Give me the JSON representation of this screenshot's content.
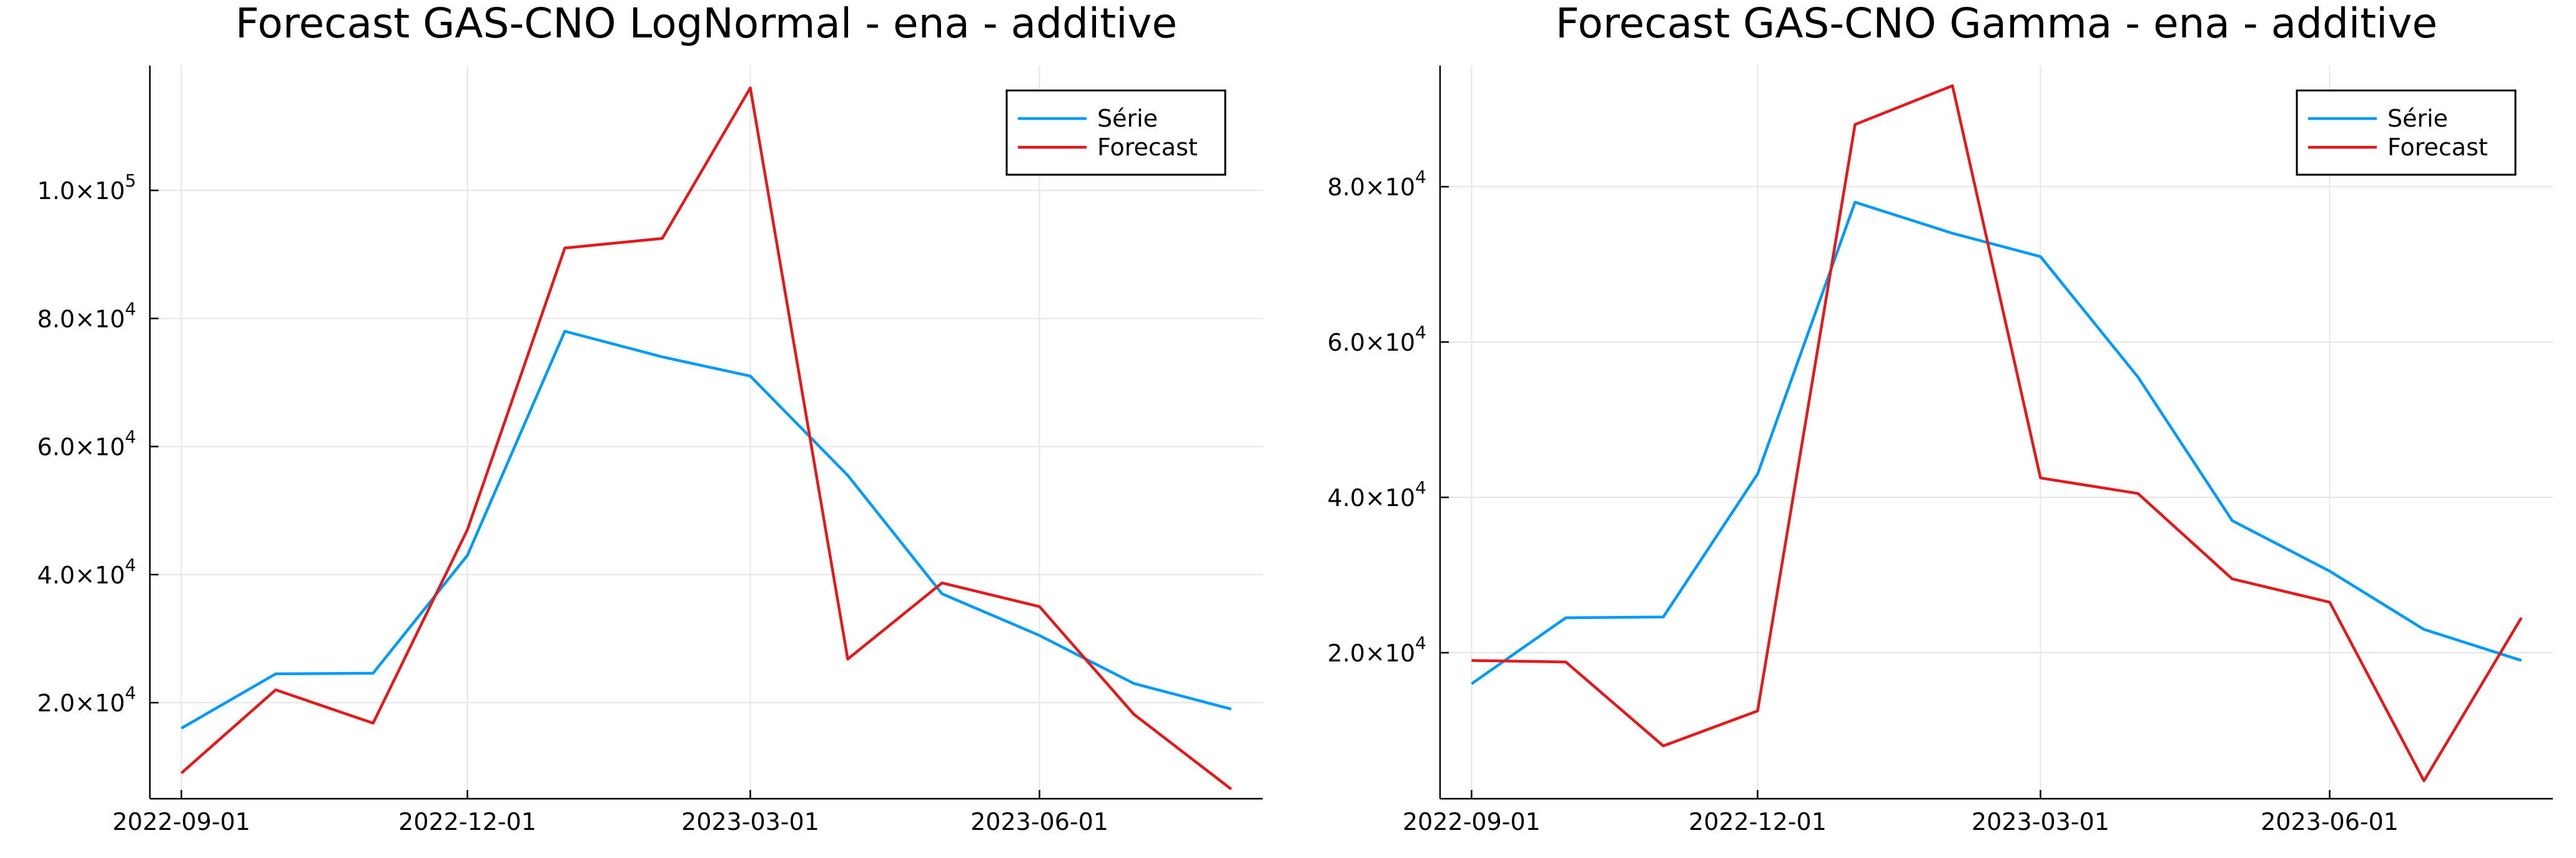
{
  "chart_data": [
    {
      "type": "line",
      "title": "Forecast GAS-CNO LogNormal - ena - additive",
      "xlabel": "",
      "ylabel": "",
      "x": [
        "2022-09-01",
        "2022-10-01",
        "2022-11-01",
        "2022-12-01",
        "2023-01-01",
        "2023-02-01",
        "2023-03-01",
        "2023-04-01",
        "2023-05-01",
        "2023-06-01",
        "2023-07-01",
        "2023-08-01"
      ],
      "x_ticks": [
        "2022-09-01",
        "2022-12-01",
        "2023-03-01",
        "2023-06-01"
      ],
      "y_ticks": [
        {
          "value": 20000,
          "mantissa": "2.0×10",
          "exp": "4"
        },
        {
          "value": 40000,
          "mantissa": "4.0×10",
          "exp": "4"
        },
        {
          "value": 60000,
          "mantissa": "6.0×10",
          "exp": "4"
        },
        {
          "value": 80000,
          "mantissa": "8.0×10",
          "exp": "4"
        },
        {
          "value": 100000,
          "mantissa": "1.0×10",
          "exp": "5"
        }
      ],
      "ylim": [
        5000,
        119500
      ],
      "grid": true,
      "legend": "top-right",
      "series": [
        {
          "name": "Série",
          "color": "#009AFA",
          "values": [
            16000,
            24500,
            24600,
            43000,
            78000,
            74000,
            71000,
            55500,
            37000,
            30500,
            23000,
            19000
          ]
        },
        {
          "name": "Forecast",
          "color": "#E31A1C",
          "values": [
            9000,
            22000,
            16800,
            47000,
            91000,
            92500,
            116000,
            26800,
            38700,
            35000,
            18200,
            6500
          ]
        }
      ]
    },
    {
      "type": "line",
      "title": "Forecast GAS-CNO Gamma - ena - additive",
      "xlabel": "",
      "ylabel": "",
      "x": [
        "2022-09-01",
        "2022-10-01",
        "2022-11-01",
        "2022-12-01",
        "2023-01-01",
        "2023-02-01",
        "2023-03-01",
        "2023-04-01",
        "2023-05-01",
        "2023-06-01",
        "2023-07-01",
        "2023-08-01"
      ],
      "x_ticks": [
        "2022-09-01",
        "2022-12-01",
        "2023-03-01",
        "2023-06-01"
      ],
      "y_ticks": [
        {
          "value": 20000,
          "mantissa": "2.0×10",
          "exp": "4"
        },
        {
          "value": 40000,
          "mantissa": "4.0×10",
          "exp": "4"
        },
        {
          "value": 60000,
          "mantissa": "6.0×10",
          "exp": "4"
        },
        {
          "value": 80000,
          "mantissa": "8.0×10",
          "exp": "4"
        }
      ],
      "ylim": [
        1200,
        95600
      ],
      "grid": true,
      "legend": "top-right",
      "series": [
        {
          "name": "Série",
          "color": "#009AFA",
          "values": [
            16000,
            24500,
            24600,
            43000,
            78000,
            74000,
            71000,
            55500,
            37000,
            30500,
            23000,
            19000
          ]
        },
        {
          "name": "Forecast",
          "color": "#E31A1C",
          "values": [
            19000,
            18800,
            8000,
            12500,
            88000,
            93000,
            42500,
            40500,
            29500,
            26500,
            3500,
            24500
          ]
        }
      ]
    }
  ]
}
